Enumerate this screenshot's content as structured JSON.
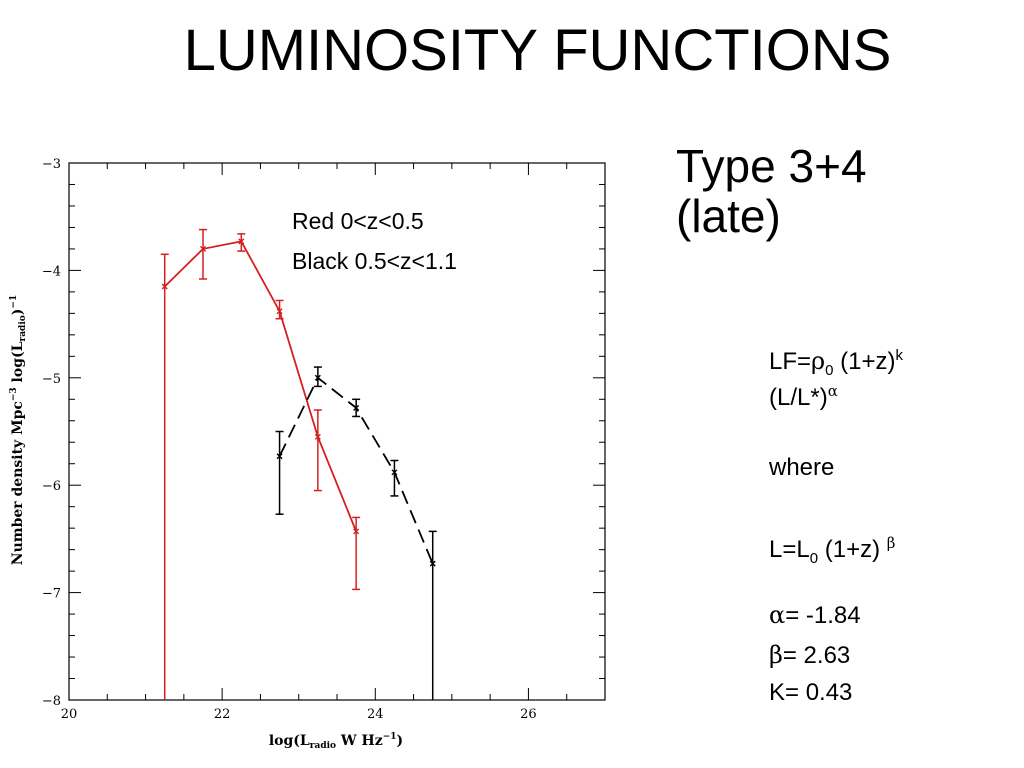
{
  "slide": {
    "title": "LUMINOSITY FUNCTIONS",
    "type_line1": "Type 3+4",
    "type_line2": "(late)"
  },
  "legend": {
    "red": "Red 0<z<0.5",
    "black": "Black 0.5<z<1.1"
  },
  "equations": {
    "lf_prefix": "LF=",
    "rho": "ρ",
    "rho_sub": "0",
    "lf_mid": " (1+z)",
    "k_sup": "k",
    "lf_ratio": "(L/L*)",
    "alpha": "α",
    "where": "where",
    "l_prefix": "L=L",
    "l_sub": "0",
    "l_mid": " (1+z) ",
    "beta": "β",
    "alpha_sym": "α",
    "alpha_val": "= -1.84",
    "beta_sym": "β",
    "beta_val": "= 2.63",
    "k_line": "K= 0.43"
  },
  "chart_data": {
    "type": "line",
    "title": "",
    "xlabel": "log(L_radio W Hz^-1)",
    "ylabel": "Number density Mpc^-3 log(L_radio)^-1",
    "xlim": [
      20,
      27
    ],
    "ylim": [
      -8,
      -3
    ],
    "x_ticks": [
      20,
      22,
      24,
      26
    ],
    "y_ticks": [
      -3,
      -4,
      -5,
      -6,
      -7,
      -8
    ],
    "grid": false,
    "colors": {
      "red": "#d42020",
      "black": "#000000"
    },
    "series": [
      {
        "name": "Red 0<z<0.5",
        "color": "#d42020",
        "dashed": false,
        "x": [
          21.25,
          21.75,
          22.25,
          22.75,
          23.25,
          23.75
        ],
        "y": [
          -4.15,
          -3.8,
          -3.73,
          -4.38,
          -5.55,
          -6.43
        ],
        "y_err_lo": [
          -8.0,
          -4.08,
          -3.82,
          -4.45,
          -6.05,
          -6.97
        ],
        "y_err_hi": [
          -3.85,
          -3.62,
          -3.66,
          -4.28,
          -5.3,
          -6.3
        ]
      },
      {
        "name": "Black 0.5<z<1.1",
        "color": "#000000",
        "dashed": true,
        "x": [
          22.75,
          23.25,
          23.75,
          24.25,
          24.75
        ],
        "y": [
          -5.73,
          -5.0,
          -5.28,
          -5.88,
          -6.73
        ],
        "y_err_lo": [
          -6.27,
          -5.08,
          -5.36,
          -6.1,
          -8.0
        ],
        "y_err_hi": [
          -5.5,
          -4.9,
          -5.2,
          -5.77,
          -6.43
        ]
      }
    ]
  }
}
